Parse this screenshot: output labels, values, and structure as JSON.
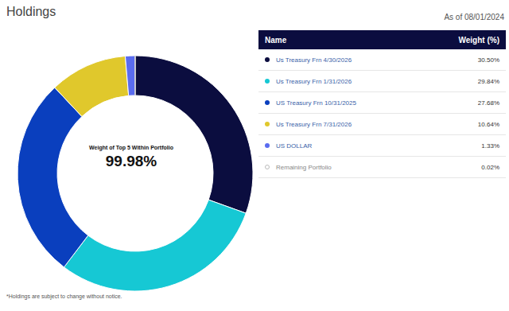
{
  "chart_data": {
    "type": "pie",
    "title": "Holdings",
    "subtitle": "As of 08/01/2024",
    "categories": [
      "Us Treasury Frn 4/30/2026",
      "Us Treasury Frn 1/31/2026",
      "US Treasury Frn 10/31/2025",
      "Us Treasury Frn 7/31/2026",
      "US DOLLAR",
      "Remaining Portfolio"
    ],
    "values": [
      30.5,
      29.84,
      27.68,
      10.64,
      1.33,
      0.02
    ],
    "value_labels": [
      "30.50%",
      "29.84%",
      "27.68%",
      "10.64%",
      "1.33%",
      "0.02%"
    ],
    "colors": [
      "#0b0d3f",
      "#16c8d4",
      "#0a3fbe",
      "#e0c82c",
      "#5a6cf0",
      "#ffffff"
    ],
    "center_label": "Weight of Top 5 Within Portfolio",
    "center_value": {
      "value": 99.98,
      "label": "99.98%"
    },
    "table_headers": [
      "Name",
      "Weight (%)"
    ],
    "annotations": [
      "*Holdings are subject to change without notice."
    ]
  }
}
